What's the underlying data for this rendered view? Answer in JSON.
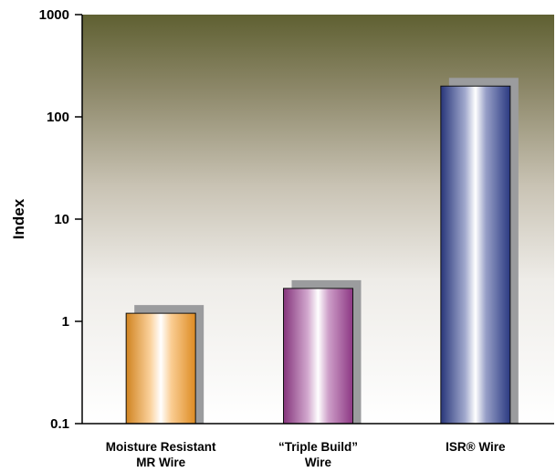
{
  "chart_data": {
    "type": "bar",
    "title": "",
    "xlabel": "",
    "ylabel": "Index",
    "yscale": "log",
    "ylim": [
      0.1,
      1000
    ],
    "yticks": [
      {
        "value": 0.1,
        "label": "0.1"
      },
      {
        "value": 1,
        "label": "1"
      },
      {
        "value": 10,
        "label": "10"
      },
      {
        "value": 100,
        "label": "100"
      },
      {
        "value": 1000,
        "label": "1000"
      }
    ],
    "categories": [
      [
        "Moisture Resistant",
        "MR Wire"
      ],
      [
        "“Triple Build”",
        "Wire"
      ],
      [
        "ISR® Wire"
      ]
    ],
    "values": [
      1.2,
      2.1,
      200
    ],
    "colors": [
      "#f59a26",
      "#9b3d91",
      "#2f3f8f"
    ],
    "grid": false
  }
}
